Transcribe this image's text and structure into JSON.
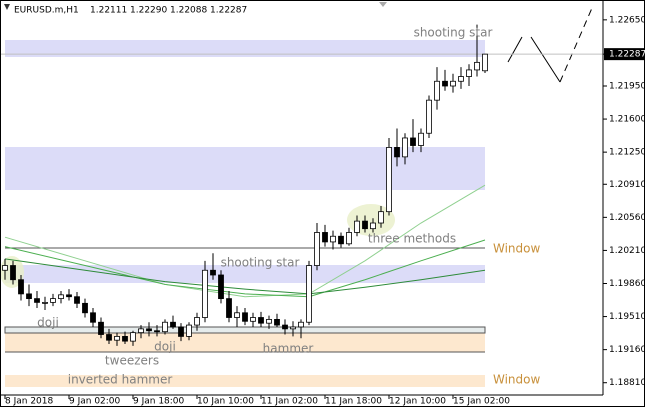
{
  "chart_data": {
    "type": "candlestick",
    "symbol": "EURUSD.m,H1",
    "quote": [
      "1.22111",
      "1.22290",
      "1.22088",
      "1.22287"
    ],
    "up_color": "#ffffff",
    "down_color": "#000000",
    "open": [
      1.2,
      1.2005,
      1.199,
      1.1975,
      1.197,
      1.1966,
      1.1966,
      1.197,
      1.1974,
      1.1972,
      1.1965,
      1.1955,
      1.1945,
      1.1932,
      1.1926,
      1.193,
      1.1925,
      1.1934,
      1.1938,
      1.1936,
      1.1935,
      1.1945,
      1.194,
      1.193,
      1.1942,
      1.195,
      1.2,
      1.1995,
      1.197,
      1.195,
      1.1955,
      1.1946,
      1.195,
      1.1944,
      1.1948,
      1.1942,
      1.1938,
      1.194,
      1.1945,
      1.2005,
      1.204,
      1.203,
      1.2036,
      1.2028,
      1.204,
      1.2052,
      1.2044,
      1.205,
      1.2062,
      1.213,
      1.212,
      1.214,
      1.2132,
      1.2145,
      1.218,
      1.22,
      1.2195,
      1.22,
      1.2205,
      1.2212,
      1.22111
    ],
    "high": [
      1.2012,
      1.201,
      1.1995,
      1.1985,
      1.1978,
      1.1972,
      1.1975,
      1.1978,
      1.198,
      1.1977,
      1.197,
      1.196,
      1.195,
      1.1938,
      1.1934,
      1.1935,
      1.1936,
      1.1942,
      1.1945,
      1.1942,
      1.1948,
      1.1952,
      1.1944,
      1.1945,
      1.1955,
      1.201,
      1.2018,
      1.2,
      1.1978,
      1.1962,
      1.196,
      1.1955,
      1.1956,
      1.1952,
      1.1954,
      1.1948,
      1.1946,
      1.1948,
      1.201,
      1.205,
      1.2048,
      1.2042,
      1.204,
      1.2045,
      1.2058,
      1.2058,
      1.2055,
      1.2068,
      1.214,
      1.215,
      1.2145,
      1.216,
      1.215,
      1.2185,
      1.2215,
      1.2212,
      1.2208,
      1.2215,
      1.2218,
      1.226,
      1.2229
    ],
    "low": [
      1.199,
      1.1985,
      1.1968,
      1.1962,
      1.196,
      1.1958,
      1.1962,
      1.1965,
      1.1968,
      1.196,
      1.195,
      1.194,
      1.1928,
      1.1922,
      1.192,
      1.1922,
      1.192,
      1.1928,
      1.193,
      1.193,
      1.1932,
      1.1938,
      1.1925,
      1.1926,
      1.1936,
      1.1945,
      1.199,
      1.1965,
      1.1945,
      1.194,
      1.1942,
      1.194,
      1.194,
      1.1938,
      1.194,
      1.1932,
      1.193,
      1.1928,
      1.1942,
      1.2,
      1.2025,
      1.2022,
      1.2024,
      1.2026,
      1.2036,
      1.204,
      1.204,
      1.2045,
      1.2058,
      1.211,
      1.2112,
      1.2125,
      1.2125,
      1.214,
      1.217,
      1.219,
      1.2188,
      1.2192,
      1.2195,
      1.2205,
      1.22088
    ],
    "close": [
      1.2005,
      1.199,
      1.1975,
      1.197,
      1.1966,
      1.1966,
      1.197,
      1.1974,
      1.1972,
      1.1965,
      1.1955,
      1.1945,
      1.1932,
      1.1926,
      1.193,
      1.1925,
      1.1934,
      1.1938,
      1.1936,
      1.1935,
      1.1945,
      1.194,
      1.193,
      1.1942,
      1.195,
      1.2,
      1.1995,
      1.197,
      1.195,
      1.1955,
      1.1946,
      1.195,
      1.1944,
      1.1948,
      1.1942,
      1.1938,
      1.194,
      1.1945,
      1.2005,
      1.204,
      1.203,
      1.2036,
      1.2028,
      1.204,
      1.2052,
      1.2044,
      1.205,
      1.2062,
      1.213,
      1.212,
      1.214,
      1.2132,
      1.2145,
      1.218,
      1.22,
      1.2195,
      1.22,
      1.2205,
      1.2212,
      1.222,
      1.22287
    ],
    "series": [
      {
        "color": "#8fd08f",
        "x": [
          0,
          10,
          20,
          30,
          38,
          45,
          52,
          60
        ],
        "values": [
          1.2035,
          1.201,
          1.1985,
          1.1972,
          1.1975,
          1.201,
          1.205,
          1.209
        ]
      },
      {
        "color": "#4caf50",
        "x": [
          0,
          10,
          20,
          30,
          38,
          45,
          52,
          60
        ],
        "values": [
          1.2025,
          1.2005,
          1.1985,
          1.1975,
          1.1972,
          1.199,
          1.201,
          1.2032
        ]
      },
      {
        "color": "#2e8b3a",
        "x": [
          0,
          10,
          20,
          30,
          38,
          45,
          52,
          60
        ],
        "values": [
          1.2012,
          1.2,
          1.1988,
          1.198,
          1.1975,
          1.1982,
          1.199,
          1.2
        ]
      }
    ],
    "ylim": [
      1.1868,
      1.2286
    ],
    "yticks": [
      {
        "value": 1.2265,
        "label": "1.22650"
      },
      {
        "value": 1.22287,
        "label": "1.22287"
      },
      {
        "value": 1.2195,
        "label": "1.21950"
      },
      {
        "value": 1.216,
        "label": "1.21600"
      },
      {
        "value": 1.2125,
        "label": "1.21250"
      },
      {
        "value": 1.2091,
        "label": "1.20910"
      },
      {
        "value": 1.2056,
        "label": "1.20560"
      },
      {
        "value": 1.2021,
        "label": "1.20210"
      },
      {
        "value": 1.1986,
        "label": "1.19860"
      },
      {
        "value": 1.1951,
        "label": "1.19510"
      },
      {
        "value": 1.1916,
        "label": "1.19160"
      },
      {
        "value": 1.1881,
        "label": "1.18810"
      }
    ],
    "xticks": [
      {
        "value": 0,
        "label": "8 Jan 2018"
      },
      {
        "value": 8,
        "label": "9 Jan 02:00"
      },
      {
        "value": 16,
        "label": "9 Jan 18:00"
      },
      {
        "value": 24,
        "label": "10 Jan 10:00"
      },
      {
        "value": 32,
        "label": "11 Jan 02:00"
      },
      {
        "value": 40,
        "label": "11 Jan 18:00"
      },
      {
        "value": 48,
        "label": "12 Jan 10:00"
      },
      {
        "value": 56,
        "label": "15 Jan 02:00"
      }
    ],
    "annotations": [
      "shooting star",
      "shooting star",
      "three methods",
      "Window",
      "Window",
      "doji",
      "tweezers",
      "doji",
      "hammer",
      "inverted hammer"
    ]
  }
}
